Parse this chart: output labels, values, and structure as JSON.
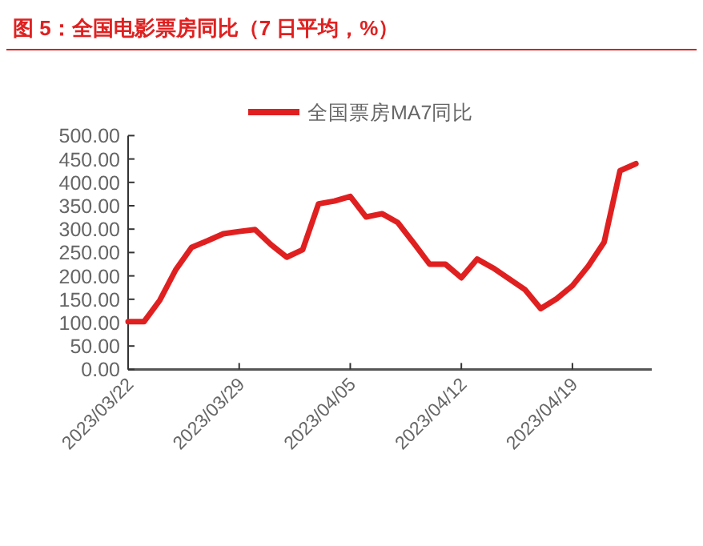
{
  "chart_data": {
    "type": "line",
    "title": "图 5：全国电影票房同比（7 日平均，%）",
    "x": [
      "2023-03-22",
      "2023-03-23",
      "2023-03-24",
      "2023-03-25",
      "2023-03-26",
      "2023-03-27",
      "2023-03-28",
      "2023-03-29",
      "2023-03-30",
      "2023-03-31",
      "2023-04-01",
      "2023-04-02",
      "2023-04-03",
      "2023-04-04",
      "2023-04-05",
      "2023-04-06",
      "2023-04-07",
      "2023-04-08",
      "2023-04-09",
      "2023-04-10",
      "2023-04-11",
      "2023-04-12",
      "2023-04-13",
      "2023-04-14",
      "2023-04-15",
      "2023-04-16",
      "2023-04-17",
      "2023-04-18",
      "2023-04-19",
      "2023-04-20",
      "2023-04-21",
      "2023-04-22",
      "2023-04-23"
    ],
    "series": [
      {
        "name": "全国票房MA7同比",
        "color": "#e02020",
        "values": [
          102,
          102,
          148,
          213,
          261,
          275,
          290,
          295,
          299,
          267,
          240,
          256,
          354,
          360,
          370,
          326,
          333,
          314,
          270,
          225,
          225,
          196,
          236,
          217,
          194,
          171,
          130,
          151,
          179,
          221,
          272,
          425,
          440
        ]
      }
    ],
    "xlim": [
      "2023-03-22",
      "2023-04-24"
    ],
    "xticks": [
      {
        "value": "2023-03-22",
        "label": "2023/03/22"
      },
      {
        "value": "2023-03-29",
        "label": "2023/03/29"
      },
      {
        "value": "2023-04-05",
        "label": "2023/04/05"
      },
      {
        "value": "2023-04-12",
        "label": "2023/04/12"
      },
      {
        "value": "2023-04-19",
        "label": "2023/04/19"
      }
    ],
    "ylim": [
      0,
      500
    ],
    "yticks": [
      {
        "value": 0,
        "label": "0.00"
      },
      {
        "value": 50,
        "label": "50.00"
      },
      {
        "value": 100,
        "label": "100.00"
      },
      {
        "value": 150,
        "label": "150.00"
      },
      {
        "value": 200,
        "label": "200.00"
      },
      {
        "value": 250,
        "label": "250.00"
      },
      {
        "value": 300,
        "label": "300.00"
      },
      {
        "value": 350,
        "label": "350.00"
      },
      {
        "value": 400,
        "label": "400.00"
      },
      {
        "value": 450,
        "label": "450.00"
      },
      {
        "value": 500,
        "label": "500.00"
      }
    ],
    "grid": false,
    "legend": "top",
    "marker": "none",
    "line_style": "solid"
  }
}
